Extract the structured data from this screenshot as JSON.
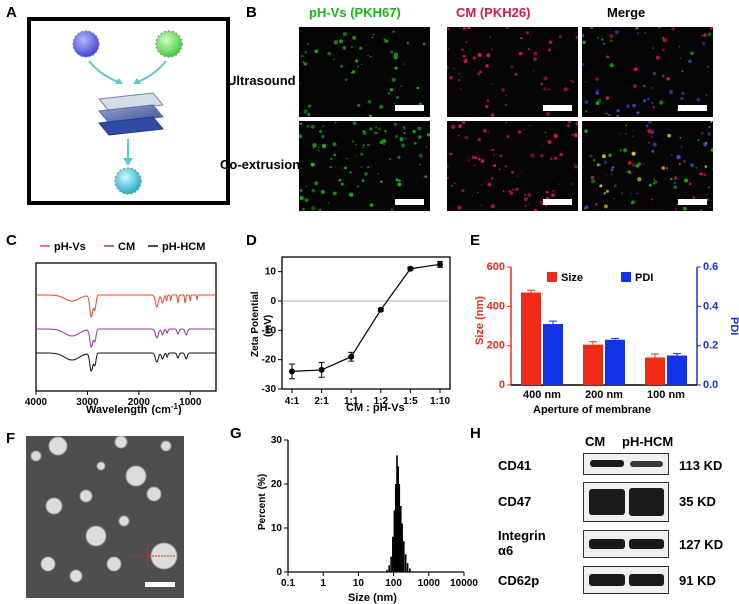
{
  "panels": {
    "A": "A",
    "B": "B",
    "C": "C",
    "D": "D",
    "E": "E",
    "F": "F",
    "G": "G",
    "H": "H"
  },
  "panelB": {
    "col1_name": "pH-Vs",
    "col1_dye": "(PKH67)",
    "col2_name": "CM",
    "col2_dye": "(PKH26)",
    "col3": "Merge",
    "row1": "Ultrasound",
    "row2": "Co-extrusion",
    "colors": {
      "green": "#14b814",
      "red": "#d9184b"
    }
  },
  "chart_data": [
    {
      "panel": "C",
      "type": "line",
      "series": [
        {
          "name": "pH-Vs",
          "color": "#e8472e"
        },
        {
          "name": "CM",
          "color": "#9b2fa8"
        },
        {
          "name": "pH-HCM",
          "color": "#111111"
        }
      ],
      "xlabel": "Wavelength",
      "xunit": "(cm",
      "xunit_sup": "-1",
      "xunit_end": ")",
      "xticks": [
        4000,
        3000,
        2000,
        1000
      ],
      "xlim": [
        4000,
        500
      ]
    },
    {
      "panel": "D",
      "type": "line",
      "categories": [
        "4:1",
        "2:1",
        "1:1",
        "1:2",
        "1:5",
        "1:10"
      ],
      "values": [
        -24,
        -23.5,
        -19,
        -3,
        11,
        12.5
      ],
      "errors": [
        2.5,
        2.5,
        1.5,
        0.5,
        0.5,
        1
      ],
      "ylabel": "Zeta Potential",
      "yunit": "(mV)",
      "xlabel": "CM : pH-Vs",
      "ylim": [
        -30,
        15
      ],
      "yticks": [
        10,
        0,
        -10,
        -20,
        -30
      ]
    },
    {
      "panel": "E",
      "type": "bar",
      "categories": [
        "400 nm",
        "200 nm",
        "100 nm"
      ],
      "series": [
        {
          "name": "Size",
          "values": [
            470,
            205,
            140
          ],
          "errors": [
            12,
            15,
            18
          ],
          "color": "#f02a14"
        },
        {
          "name": "PDI",
          "values": [
            0.31,
            0.23,
            0.15
          ],
          "errors": [
            0.015,
            0.007,
            0.01
          ],
          "color": "#1433e6"
        }
      ],
      "ylabel_left": "Size (nm)",
      "ylabel_right": "PDI",
      "xlabel": "Aperture of membrane",
      "ylim_left": [
        0,
        600
      ],
      "ylim_right": [
        0,
        0.6
      ],
      "yticks_left": [
        600,
        400,
        200,
        0
      ],
      "yticks_right": [
        "0.6",
        "0.4",
        "0.2",
        "0.0"
      ]
    },
    {
      "panel": "G",
      "type": "bar",
      "x": [
        65,
        75,
        85,
        95,
        105,
        115,
        125,
        135,
        145,
        160,
        175,
        195,
        220,
        250,
        290
      ],
      "values": [
        0.5,
        1.5,
        3.5,
        8,
        14,
        20,
        26.5,
        24,
        20,
        15,
        11,
        7,
        4,
        2,
        0.8
      ],
      "xlabel": "Size (nm)",
      "ylabel": "Percent",
      "yunit": "(%)",
      "xscale": "log",
      "xlim": [
        0.1,
        10000
      ],
      "xticks": [
        "0.1",
        "1",
        "10",
        "100",
        "1000",
        "10000"
      ],
      "ylim": [
        0,
        30
      ],
      "yticks": [
        30,
        20,
        10,
        0
      ]
    }
  ],
  "panelH": {
    "col1": "CM",
    "col2": "pH-HCM",
    "rows": [
      {
        "name": "CD41",
        "kd": "113 KD"
      },
      {
        "name": "CD47",
        "kd": "35 KD"
      },
      {
        "name": "Integrin",
        "name2": "α6",
        "kd": "127 KD"
      },
      {
        "name": "CD62p",
        "kd": "91 KD"
      }
    ]
  }
}
